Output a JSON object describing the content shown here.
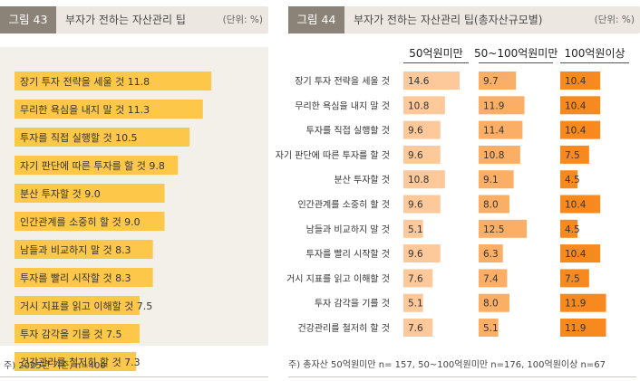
{
  "left_panel": {
    "badge": "그림 43",
    "title": "부자가 전하는 자산관리 팁",
    "unit": "(단위: %)",
    "note": "주) 2025년 기준, n=400"
  },
  "right_panel": {
    "badge": "그림 44",
    "title": "부자가 전하는 자산관리 팁(총자산규모별)",
    "unit": "(단위: %)",
    "note": "주) 총자산 50억원미만 n= 157, 50~100억원미만 n=176, 100억원이상 n=67"
  },
  "chart_data": [
    {
      "type": "bar",
      "orientation": "horizontal",
      "title": "부자가 전하는 자산관리 팁",
      "categories": [
        "장기 투자 전략을 세울 것",
        "무리한 욕심을 내지 말 것",
        "투자를 직접 실행할 것",
        "자기 판단에 따른 투자를 할 것",
        "분산 투자할 것",
        "인간관계를 소중히 할 것",
        "남들과 비교하지 말 것",
        "투자를 빨리 시작할 것",
        "거시 지표를 읽고 이해할 것",
        "투자 감각을 기를 것",
        "건강관리를 철저히 할 것"
      ],
      "values": [
        11.8,
        11.3,
        10.5,
        9.8,
        9.0,
        9.0,
        8.3,
        8.3,
        7.5,
        7.5,
        7.3
      ],
      "value_labels": [
        "11.8",
        "11.3",
        "10.5",
        "9.8",
        "9.0",
        "9.0",
        "8.3",
        "8.3",
        "7.5",
        "7.5",
        "7.3"
      ],
      "xlim": [
        0,
        14
      ],
      "color": "#fdc84a"
    },
    {
      "type": "bar",
      "orientation": "horizontal",
      "title": "부자가 전하는 자산관리 팁(총자산규모별)",
      "categories": [
        "장기 투자 전략을 세울 것",
        "무리한 욕심을 내지 말 것",
        "투자를 직접 실행할 것",
        "자기 판단에 따른 투자를 할 것",
        "분산 투자할 것",
        "인간관계를 소중히 할 것",
        "남들과 비교하지 말 것",
        "투자를 빨리 시작할 것",
        "거시 지표를 읽고 이해할 것",
        "투자 감각을 기를 것",
        "건강관리를 철저히 할 것"
      ],
      "series": [
        {
          "name": "50억원미만",
          "color": "#fdc89a",
          "values": [
            14.6,
            10.8,
            9.6,
            9.6,
            10.8,
            9.6,
            5.1,
            9.6,
            7.6,
            5.1,
            7.6
          ],
          "labels": [
            "14.6",
            "10.8",
            "9.6",
            "9.6",
            "10.8",
            "9.6",
            "5.1",
            "9.6",
            "7.6",
            "5.1",
            "7.6"
          ]
        },
        {
          "name": "50~100억원미만",
          "color": "#fbaf66",
          "values": [
            9.7,
            11.9,
            11.4,
            10.8,
            9.1,
            8.0,
            12.5,
            6.3,
            7.4,
            8.0,
            5.1
          ],
          "labels": [
            "9.7",
            "11.9",
            "11.4",
            "10.8",
            "9.1",
            "8.0",
            "12.5",
            "6.3",
            "7.4",
            "8.0",
            "5.1"
          ]
        },
        {
          "name": "100억원이상",
          "color": "#f7891f",
          "values": [
            10.4,
            10.4,
            10.4,
            7.5,
            4.5,
            10.4,
            4.5,
            10.4,
            7.5,
            11.9,
            11.9
          ],
          "labels": [
            "10.4",
            "10.4",
            "10.4",
            "7.5",
            "4.5",
            "10.4",
            "4.5",
            "10.4",
            "7.5",
            "11.9",
            "11.9"
          ]
        }
      ],
      "xlim": [
        0,
        16
      ]
    }
  ]
}
